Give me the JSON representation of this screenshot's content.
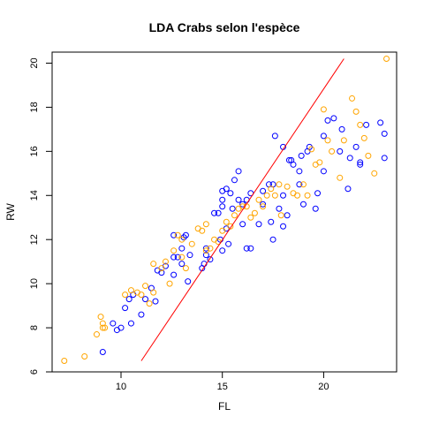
{
  "chart_data": {
    "type": "scatter",
    "title": "LDA Crabs selon l'espèce",
    "xlabel": "FL",
    "ylabel": "RW",
    "xlim": [
      6.6,
      23.6
    ],
    "ylim": [
      6,
      20.5
    ],
    "xticks": [
      10,
      15,
      20
    ],
    "yticks": [
      6,
      8,
      10,
      12,
      14,
      16,
      18,
      20
    ],
    "grid": false,
    "legend": "none",
    "colors": {
      "blue": "#0000ff",
      "orange": "#ffa500",
      "line": "#ff0000"
    },
    "series": [
      {
        "color": "#0000ff",
        "points": [
          [
            9.1,
            6.9
          ],
          [
            9.6,
            8.2
          ],
          [
            9.8,
            7.9
          ],
          [
            10.0,
            8.0
          ],
          [
            10.2,
            8.9
          ],
          [
            10.4,
            9.3
          ],
          [
            10.6,
            9.5
          ],
          [
            10.5,
            8.2
          ],
          [
            11.0,
            8.6
          ],
          [
            11.2,
            9.3
          ],
          [
            11.5,
            9.8
          ],
          [
            11.7,
            9.2
          ],
          [
            11.8,
            10.6
          ],
          [
            12.0,
            10.5
          ],
          [
            12.2,
            10.8
          ],
          [
            12.6,
            10.4
          ],
          [
            12.6,
            11.2
          ],
          [
            12.8,
            11.2
          ],
          [
            13.0,
            10.9
          ],
          [
            13.0,
            11.6
          ],
          [
            13.1,
            12.1
          ],
          [
            13.4,
            11.3
          ],
          [
            12.6,
            12.2
          ],
          [
            13.2,
            12.2
          ],
          [
            13.3,
            10.1
          ],
          [
            14.0,
            10.7
          ],
          [
            14.1,
            10.9
          ],
          [
            14.2,
            11.6
          ],
          [
            14.2,
            11.3
          ],
          [
            14.4,
            11.1
          ],
          [
            14.6,
            13.2
          ],
          [
            14.8,
            13.2
          ],
          [
            14.9,
            12.0
          ],
          [
            15.0,
            11.5
          ],
          [
            15.0,
            13.5
          ],
          [
            15.0,
            13.8
          ],
          [
            15.0,
            14.2
          ],
          [
            15.2,
            12.5
          ],
          [
            15.2,
            14.3
          ],
          [
            15.3,
            11.8
          ],
          [
            15.4,
            14.1
          ],
          [
            15.5,
            13.4
          ],
          [
            15.6,
            14.7
          ],
          [
            15.8,
            13.8
          ],
          [
            15.8,
            15.1
          ],
          [
            16.0,
            12.7
          ],
          [
            16.2,
            11.6
          ],
          [
            16.0,
            13.6
          ],
          [
            16.2,
            13.8
          ],
          [
            16.4,
            14.1
          ],
          [
            16.4,
            11.6
          ],
          [
            16.8,
            12.7
          ],
          [
            17.0,
            13.6
          ],
          [
            17.0,
            14.2
          ],
          [
            17.3,
            14.5
          ],
          [
            17.4,
            12.8
          ],
          [
            17.5,
            12.0
          ],
          [
            17.5,
            14.5
          ],
          [
            17.6,
            16.7
          ],
          [
            17.8,
            13.4
          ],
          [
            18.0,
            12.6
          ],
          [
            18.0,
            14.0
          ],
          [
            18.0,
            16.2
          ],
          [
            18.2,
            13.1
          ],
          [
            18.3,
            15.6
          ],
          [
            18.4,
            15.6
          ],
          [
            18.5,
            15.4
          ],
          [
            18.8,
            14.5
          ],
          [
            18.8,
            15.1
          ],
          [
            18.9,
            15.8
          ],
          [
            19.0,
            13.6
          ],
          [
            19.2,
            16.0
          ],
          [
            19.3,
            16.2
          ],
          [
            19.6,
            13.4
          ],
          [
            19.7,
            14.1
          ],
          [
            20.0,
            15.1
          ],
          [
            20.0,
            16.7
          ],
          [
            20.2,
            17.4
          ],
          [
            20.5,
            17.5
          ],
          [
            20.8,
            16.0
          ],
          [
            20.9,
            17.0
          ],
          [
            21.2,
            14.3
          ],
          [
            21.3,
            15.7
          ],
          [
            21.6,
            16.2
          ],
          [
            21.8,
            15.4
          ],
          [
            21.8,
            15.5
          ],
          [
            22.1,
            17.2
          ],
          [
            22.8,
            17.3
          ],
          [
            23.0,
            15.7
          ],
          [
            23.0,
            16.8
          ]
        ]
      },
      {
        "color": "#ffa500",
        "points": [
          [
            7.2,
            6.5
          ],
          [
            8.2,
            6.7
          ],
          [
            8.8,
            7.7
          ],
          [
            9.0,
            8.5
          ],
          [
            9.1,
            8.2
          ],
          [
            9.1,
            8.0
          ],
          [
            9.2,
            8.0
          ],
          [
            10.2,
            9.5
          ],
          [
            10.5,
            9.7
          ],
          [
            10.8,
            9.6
          ],
          [
            11.0,
            9.5
          ],
          [
            11.2,
            9.9
          ],
          [
            11.4,
            9.1
          ],
          [
            11.6,
            9.6
          ],
          [
            11.6,
            10.9
          ],
          [
            12.0,
            10.7
          ],
          [
            12.2,
            11.0
          ],
          [
            12.4,
            10.0
          ],
          [
            12.6,
            11.5
          ],
          [
            12.8,
            12.2
          ],
          [
            13.0,
            11.2
          ],
          [
            13.0,
            12.0
          ],
          [
            13.2,
            10.7
          ],
          [
            13.5,
            11.8
          ],
          [
            13.8,
            12.5
          ],
          [
            14.0,
            12.4
          ],
          [
            14.2,
            12.7
          ],
          [
            14.2,
            11.5
          ],
          [
            14.4,
            11.6
          ],
          [
            14.6,
            12.0
          ],
          [
            14.8,
            11.9
          ],
          [
            15.0,
            12.4
          ],
          [
            15.2,
            12.8
          ],
          [
            15.4,
            12.6
          ],
          [
            15.6,
            13.1
          ],
          [
            15.8,
            13.4
          ],
          [
            16.0,
            13.5
          ],
          [
            16.2,
            13.5
          ],
          [
            16.4,
            13.0
          ],
          [
            16.6,
            13.2
          ],
          [
            16.8,
            13.8
          ],
          [
            17.0,
            13.5
          ],
          [
            17.2,
            14.0
          ],
          [
            17.4,
            14.3
          ],
          [
            17.6,
            14.0
          ],
          [
            17.8,
            14.5
          ],
          [
            17.9,
            13.1
          ],
          [
            18.2,
            14.4
          ],
          [
            18.5,
            14.1
          ],
          [
            18.7,
            14.0
          ],
          [
            19.0,
            14.5
          ],
          [
            19.2,
            14.0
          ],
          [
            19.4,
            16.1
          ],
          [
            19.6,
            15.4
          ],
          [
            19.8,
            15.5
          ],
          [
            20.0,
            17.9
          ],
          [
            20.2,
            16.5
          ],
          [
            20.4,
            16.0
          ],
          [
            20.8,
            14.8
          ],
          [
            21.0,
            16.5
          ],
          [
            21.4,
            18.4
          ],
          [
            21.6,
            17.8
          ],
          [
            21.8,
            17.2
          ],
          [
            22.0,
            16.6
          ],
          [
            22.2,
            15.8
          ],
          [
            22.5,
            15.0
          ],
          [
            23.1,
            20.2
          ]
        ]
      }
    ],
    "lines": [
      {
        "color": "#ff0000",
        "x": [
          11.0,
          21.0
        ],
        "y": [
          6.5,
          20.2
        ]
      }
    ]
  }
}
